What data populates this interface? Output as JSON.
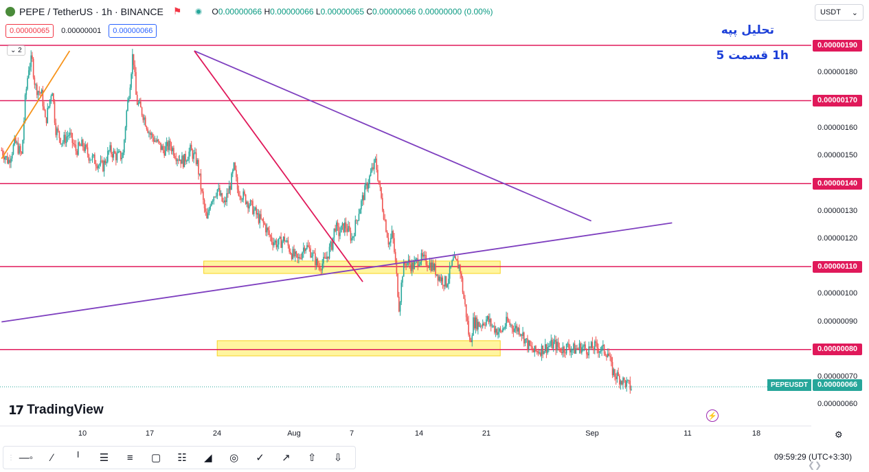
{
  "header": {
    "symbol_title": "PEPE / TetherUS · 1h · BINANCE",
    "ohlc_o_label": "O",
    "ohlc_o": "0.00000066",
    "ohlc_h_label": "H",
    "ohlc_h": "0.00000066",
    "ohlc_l_label": "L",
    "ohlc_l": "0.00000065",
    "ohlc_c_label": "C",
    "ohlc_c": "0.00000066",
    "change": "0.00000000 (0.00%)",
    "sell_price": "0.00000065",
    "spread": "0.00000001",
    "buy_price": "0.00000066",
    "indicator_count": "2",
    "currency": "USDT",
    "icons": [
      "flag-icon",
      "live-dot-icon",
      "chevron-down-icon"
    ]
  },
  "annotation": {
    "line1": "تحلیل پپه",
    "line2": "1h    قسمت 5"
  },
  "colors": {
    "up": "#26a69a",
    "down": "#ef5350",
    "level_line": "#e0195a",
    "trend_line": "#7e3fbf",
    "zone_fill": "#fff176",
    "short_trend": "#f7931a"
  },
  "price_tags": {
    "symbol_label": "PEPEUSDT",
    "current_price": "0.00000066",
    "levels": [
      "0.00000190",
      "0.00000170",
      "0.00000140",
      "0.00000110",
      "0.00000080"
    ]
  },
  "branding": {
    "logo_text": "TradingView",
    "logo_mark": "17"
  },
  "footer": {
    "time": "09:59:29",
    "timezone": "UTC+3:30",
    "tools": [
      "cursor-line-icon",
      "trend-line-icon",
      "vertical-line-icon",
      "parallel-channel-icon",
      "fib-icon",
      "rectangle-icon",
      "grid-icon",
      "triangle-pattern-icon",
      "circle-icon",
      "brush-icon",
      "arrow-icon",
      "up-arrow-icon",
      "down-arrow-icon"
    ]
  },
  "chart_data": {
    "type": "candlestick",
    "symbol": "PEPEUSDT",
    "timeframe": "1h",
    "exchange": "BINANCE",
    "x_ticks": [
      "10",
      "17",
      "24",
      "Aug",
      "7",
      "14",
      "21",
      "Sep",
      "11",
      "18"
    ],
    "y_ticks": [
      "0.00000180",
      "0.00000160",
      "0.00000150",
      "0.00000130",
      "0.00000120",
      "0.00000100",
      "0.00000090",
      "0.00000070",
      "0.00000060"
    ],
    "ylim": [
      5.7e-07,
      1.98e-06
    ],
    "horizontal_levels": [
      1.9e-06,
      1.7e-06,
      1.4e-06,
      1.1e-06,
      8e-07
    ],
    "zones": [
      {
        "from_tick": 1.8,
        "to_tick": 6.2,
        "low": 1.075e-06,
        "high": 1.12e-06
      },
      {
        "from_tick": 2.0,
        "to_tick": 6.2,
        "low": 7.77e-07,
        "high": 8.32e-07
      }
    ],
    "trend_lines": [
      {
        "name": "upper-falling",
        "p1": [
          1.66,
          1.88e-06
        ],
        "p2": [
          7.55,
          1.265e-06
        ]
      },
      {
        "name": "rising-support",
        "p1": [
          -1.2,
          9e-07
        ],
        "p2": [
          8.75,
          1.258e-06
        ]
      },
      {
        "name": "steep-falling",
        "p1": [
          1.66,
          1.88e-06
        ],
        "p2": [
          4.16,
          1.045e-06
        ]
      },
      {
        "name": "early-rising",
        "p1": [
          -1.2,
          1.49e-06
        ],
        "p2": [
          -0.19,
          1.88e-06
        ]
      }
    ],
    "price_path": [
      [
        -1.2,
        1.52e-06
      ],
      [
        -1.1,
        1.48e-06
      ],
      [
        -1.0,
        1.55e-06
      ],
      [
        -0.9,
        1.5e-06
      ],
      [
        -0.85,
        1.7e-06
      ],
      [
        -0.8,
        1.82e-06
      ],
      [
        -0.75,
        1.85e-06
      ],
      [
        -0.7,
        1.75e-06
      ],
      [
        -0.6,
        1.72e-06
      ],
      [
        -0.55,
        1.62e-06
      ],
      [
        -0.5,
        1.68e-06
      ],
      [
        -0.45,
        1.75e-06
      ],
      [
        -0.4,
        1.6e-06
      ],
      [
        -0.3,
        1.55e-06
      ],
      [
        -0.2,
        1.58e-06
      ],
      [
        -0.1,
        1.52e-06
      ],
      [
        0.0,
        1.54e-06
      ],
      [
        0.1,
        1.5e-06
      ],
      [
        0.2,
        1.48e-06
      ],
      [
        0.3,
        1.46e-06
      ],
      [
        0.4,
        1.52e-06
      ],
      [
        0.5,
        1.5e-06
      ],
      [
        0.6,
        1.5e-06
      ],
      [
        0.65,
        1.65e-06
      ],
      [
        0.7,
        1.75e-06
      ],
      [
        0.75,
        1.88e-06
      ],
      [
        0.8,
        1.7e-06
      ],
      [
        0.9,
        1.65e-06
      ],
      [
        1.0,
        1.58e-06
      ],
      [
        1.1,
        1.55e-06
      ],
      [
        1.2,
        1.52e-06
      ],
      [
        1.3,
        1.54e-06
      ],
      [
        1.4,
        1.5e-06
      ],
      [
        1.5,
        1.48e-06
      ],
      [
        1.6,
        1.52e-06
      ],
      [
        1.7,
        1.48e-06
      ],
      [
        1.75,
        1.4e-06
      ],
      [
        1.8,
        1.32e-06
      ],
      [
        1.85,
        1.26e-06
      ],
      [
        1.9,
        1.34e-06
      ],
      [
        2.0,
        1.38e-06
      ],
      [
        2.1,
        1.32e-06
      ],
      [
        2.2,
        1.4e-06
      ],
      [
        2.25,
        1.46e-06
      ],
      [
        2.3,
        1.38e-06
      ],
      [
        2.4,
        1.35e-06
      ],
      [
        2.5,
        1.32e-06
      ],
      [
        2.6,
        1.28e-06
      ],
      [
        2.7,
        1.25e-06
      ],
      [
        2.8,
        1.2e-06
      ],
      [
        2.9,
        1.18e-06
      ],
      [
        3.0,
        1.2e-06
      ],
      [
        3.1,
        1.15e-06
      ],
      [
        3.2,
        1.12e-06
      ],
      [
        3.3,
        1.18e-06
      ],
      [
        3.4,
        1.15e-06
      ],
      [
        3.5,
        1.1e-06
      ],
      [
        3.6,
        1.12e-06
      ],
      [
        3.7,
        1.18e-06
      ],
      [
        3.75,
        1.25e-06
      ],
      [
        3.8,
        1.22e-06
      ],
      [
        3.9,
        1.25e-06
      ],
      [
        4.0,
        1.2e-06
      ],
      [
        4.1,
        1.3e-06
      ],
      [
        4.2,
        1.38e-06
      ],
      [
        4.3,
        1.45e-06
      ],
      [
        4.35,
        1.48e-06
      ],
      [
        4.4,
        1.4e-06
      ],
      [
        4.45,
        1.32e-06
      ],
      [
        4.5,
        1.25e-06
      ],
      [
        4.55,
        1.18e-06
      ],
      [
        4.6,
        1.22e-06
      ],
      [
        4.65,
        1.1e-06
      ],
      [
        4.7,
        9.5e-07
      ],
      [
        4.75,
        1.08e-06
      ],
      [
        4.8,
        1.12e-06
      ],
      [
        4.9,
        1.1e-06
      ],
      [
        5.0,
        1.13e-06
      ],
      [
        5.1,
        1.12e-06
      ],
      [
        5.2,
        1.1e-06
      ],
      [
        5.3,
        1.06e-06
      ],
      [
        5.4,
        1.04e-06
      ],
      [
        5.5,
        1.12e-06
      ],
      [
        5.6,
        1.1e-06
      ],
      [
        5.65,
        1e-06
      ],
      [
        5.7,
        9.2e-07
      ],
      [
        5.75,
        8.2e-07
      ],
      [
        5.8,
        9e-07
      ],
      [
        5.9,
        8.9e-07
      ],
      [
        6.0,
        9.1e-07
      ],
      [
        6.1,
        8.8e-07
      ],
      [
        6.2,
        8.6e-07
      ],
      [
        6.3,
        9e-07
      ],
      [
        6.4,
        8.8e-07
      ],
      [
        6.5,
        8.7e-07
      ],
      [
        6.6,
        8.2e-07
      ],
      [
        6.7,
        7.9e-07
      ],
      [
        6.8,
        8e-07
      ],
      [
        6.9,
        8.1e-07
      ],
      [
        7.0,
        8.2e-07
      ],
      [
        7.1,
        8e-07
      ],
      [
        7.2,
        8.1e-07
      ],
      [
        7.3,
        8e-07
      ],
      [
        7.4,
        8.1e-07
      ],
      [
        7.5,
        8e-07
      ],
      [
        7.6,
        8.1e-07
      ],
      [
        7.7,
        8e-07
      ],
      [
        7.8,
        7.9e-07
      ],
      [
        7.85,
        7.3e-07
      ],
      [
        7.9,
        7.1e-07
      ],
      [
        8.0,
        6.9e-07
      ],
      [
        8.1,
        6.7e-07
      ],
      [
        8.15,
        6.6e-07
      ]
    ]
  }
}
